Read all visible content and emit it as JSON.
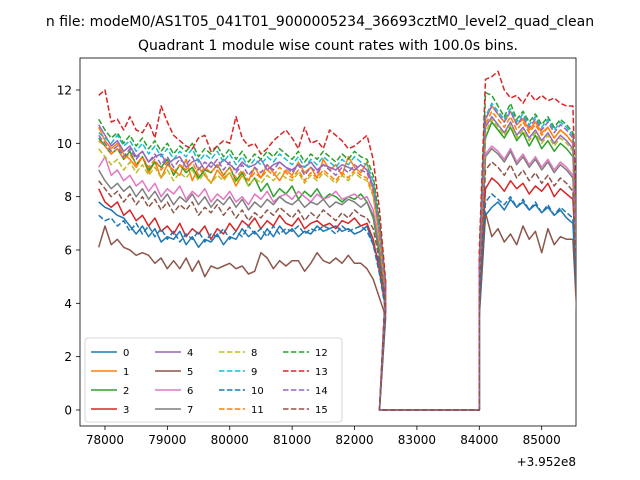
{
  "chart_data": {
    "type": "line",
    "suptitle": "n file: modeM0/AS1T05_041T01_9000005234_36693cztM0_level2_quad_clean",
    "title": "Quadrant 1 module wise count rates with 100.0s bins.",
    "xlabel": "",
    "ylabel": "",
    "x_offset_label": "+3.952e8",
    "xlim": [
      77600,
      85550
    ],
    "ylim": [
      -0.6,
      13.2
    ],
    "xticks": [
      78000,
      79000,
      80000,
      81000,
      82000,
      83000,
      84000,
      85000
    ],
    "xtick_labels": [
      "78000",
      "79000",
      "80000",
      "81000",
      "82000",
      "83000",
      "84000",
      "85000"
    ],
    "yticks": [
      0,
      2,
      4,
      6,
      8,
      10,
      12
    ],
    "ytick_labels": [
      "0",
      "2",
      "4",
      "6",
      "8",
      "10",
      "12"
    ],
    "gaps": [
      [
        82400,
        84000
      ]
    ],
    "legend_loc": "lower-left",
    "series": [
      {
        "name": "0",
        "color": "#1f77b4",
        "dash": "solid",
        "seg1": [
          7.8,
          7.6,
          7.5,
          7.3,
          7.2,
          6.9,
          6.6,
          6.9,
          6.5,
          6.8,
          6.3,
          6.5,
          6.4,
          6.7,
          6.2,
          6.5,
          6.1,
          6.4,
          6.3,
          6.6,
          6.2,
          6.5,
          6.4,
          6.8,
          6.5,
          6.7,
          6.4,
          6.8,
          6.5,
          6.9,
          6.6,
          6.8,
          6.5,
          6.7,
          6.6,
          6.9,
          6.7,
          6.8,
          6.9,
          6.7,
          6.8,
          6.6,
          6.7,
          6.9,
          6.2,
          5.5,
          4.2
        ],
        "seg2": [
          3.5,
          7.3,
          7.6,
          7.8,
          7.5,
          7.9,
          7.6,
          7.8,
          7.5,
          7.7,
          7.4,
          7.6,
          7.3,
          7.5,
          7.2,
          7.0,
          2.6
        ]
      },
      {
        "name": "1",
        "color": "#ff7f0e",
        "dash": "solid",
        "seg1": [
          10.6,
          10.1,
          9.8,
          10.0,
          9.6,
          9.4,
          9.1,
          9.5,
          8.9,
          9.3,
          8.7,
          9.2,
          9.0,
          8.8,
          9.4,
          8.6,
          9.1,
          8.8,
          8.5,
          9.0,
          8.7,
          8.9,
          8.4,
          8.8,
          8.6,
          9.1,
          8.7,
          9.2,
          8.9,
          8.6,
          9.0,
          8.8,
          9.3,
          8.9,
          9.1,
          8.7,
          9.4,
          9.0,
          9.2,
          8.8,
          9.5,
          9.1,
          8.9,
          9.3,
          8.2,
          6.5,
          4.5
        ],
        "seg2": [
          5.2,
          10.9,
          11.4,
          11.1,
          10.8,
          11.2,
          10.7,
          10.9,
          10.5,
          10.8,
          10.4,
          10.6,
          10.2,
          10.5,
          10.3,
          10.0,
          2.8
        ]
      },
      {
        "name": "2",
        "color": "#2ca02c",
        "dash": "solid",
        "seg1": [
          10.2,
          9.9,
          9.6,
          9.8,
          9.4,
          9.7,
          9.2,
          9.5,
          9.0,
          9.3,
          9.1,
          9.4,
          8.8,
          9.2,
          8.9,
          9.1,
          8.7,
          9.0,
          8.9,
          9.2,
          8.8,
          9.1,
          8.6,
          8.9,
          8.4,
          8.7,
          8.2,
          8.5,
          8.0,
          8.3,
          8.1,
          8.4,
          7.9,
          8.2,
          8.0,
          8.3,
          7.9,
          8.1,
          8.0,
          7.8,
          8.0,
          7.9,
          8.1,
          7.8,
          7.2,
          5.8,
          4.0
        ],
        "seg2": [
          4.8,
          10.2,
          10.8,
          10.5,
          10.2,
          10.6,
          10.1,
          10.4,
          9.9,
          10.3,
          9.8,
          10.1,
          9.7,
          10.0,
          9.8,
          9.5,
          3.4
        ]
      },
      {
        "name": "3",
        "color": "#d62728",
        "dash": "solid",
        "seg1": [
          8.3,
          7.8,
          7.6,
          7.8,
          7.3,
          7.5,
          7.1,
          7.3,
          6.9,
          7.2,
          6.7,
          6.9,
          6.6,
          7.0,
          6.5,
          6.8,
          6.6,
          6.9,
          6.4,
          6.8,
          6.6,
          7.0,
          6.7,
          7.1,
          6.9,
          7.2,
          6.8,
          7.1,
          6.9,
          7.3,
          7.0,
          6.9,
          7.2,
          6.8,
          7.0,
          7.1,
          6.9,
          7.0,
          6.8,
          7.1,
          7.0,
          7.2,
          6.9,
          7.0,
          6.4,
          5.2,
          3.8
        ],
        "seg2": [
          4.2,
          8.3,
          8.7,
          8.5,
          8.2,
          8.6,
          8.3,
          8.5,
          8.1,
          8.4,
          8.2,
          8.5,
          8.0,
          8.3,
          8.1,
          7.9,
          3.2
        ]
      },
      {
        "name": "4",
        "color": "#9467bd",
        "dash": "solid",
        "seg1": [
          10.7,
          10.3,
          9.9,
          10.1,
          9.7,
          9.9,
          9.5,
          9.7,
          9.3,
          9.5,
          9.6,
          9.2,
          9.4,
          9.5,
          9.1,
          9.3,
          9.4,
          9.0,
          9.3,
          9.1,
          9.4,
          9.2,
          9.0,
          9.3,
          9.1,
          9.2,
          9.4,
          9.0,
          9.2,
          9.3,
          9.1,
          9.0,
          9.2,
          9.1,
          9.3,
          9.0,
          9.2,
          9.1,
          9.0,
          9.2,
          9.1,
          9.0,
          9.2,
          9.0,
          8.4,
          6.8,
          4.4
        ],
        "seg2": [
          5.0,
          10.6,
          11.0,
          10.7,
          10.4,
          10.8,
          10.3,
          10.6,
          10.2,
          10.5,
          10.1,
          10.4,
          10.0,
          10.3,
          10.1,
          9.8,
          3.1
        ]
      },
      {
        "name": "5",
        "color": "#8c564b",
        "dash": "solid",
        "seg1": [
          6.1,
          6.9,
          6.2,
          6.4,
          6.1,
          6.0,
          5.8,
          5.9,
          5.8,
          5.5,
          5.7,
          5.3,
          5.6,
          5.3,
          5.7,
          5.2,
          5.6,
          5.0,
          5.4,
          5.3,
          5.4,
          5.5,
          5.3,
          5.4,
          5.1,
          5.2,
          5.9,
          5.7,
          5.3,
          5.6,
          5.4,
          5.6,
          5.6,
          5.2,
          5.5,
          5.9,
          5.6,
          5.5,
          5.7,
          5.5,
          5.8,
          5.5,
          5.5,
          5.3,
          4.9,
          4.2,
          3.5
        ],
        "seg2": [
          3.6,
          7.4,
          6.5,
          6.8,
          6.3,
          6.6,
          6.2,
          6.9,
          6.4,
          6.7,
          5.9,
          6.8,
          6.2,
          6.5,
          6.4,
          6.4,
          2.0
        ]
      },
      {
        "name": "6",
        "color": "#e377c2",
        "dash": "solid",
        "seg1": [
          9.1,
          9.5,
          8.8,
          9.0,
          8.6,
          8.8,
          8.4,
          8.6,
          8.2,
          8.5,
          8.0,
          8.3,
          8.1,
          8.4,
          7.9,
          8.2,
          8.0,
          8.3,
          7.8,
          8.1,
          7.9,
          8.2,
          7.8,
          8.0,
          7.7,
          8.1,
          7.9,
          8.2,
          7.8,
          8.0,
          8.1,
          7.9,
          8.2,
          8.0,
          7.8,
          8.1,
          7.9,
          8.0,
          8.2,
          7.9,
          8.0,
          8.1,
          7.9,
          8.0,
          7.5,
          6.2,
          4.3
        ],
        "seg2": [
          4.6,
          9.6,
          9.9,
          9.7,
          9.4,
          9.8,
          9.3,
          9.6,
          9.2,
          9.5,
          9.1,
          9.4,
          9.0,
          9.3,
          9.1,
          8.8,
          3.0
        ]
      },
      {
        "name": "7",
        "color": "#7f7f7f",
        "dash": "solid",
        "seg1": [
          9.0,
          8.6,
          8.3,
          8.5,
          8.2,
          8.4,
          8.0,
          8.3,
          7.9,
          8.2,
          7.8,
          8.1,
          7.7,
          8.0,
          7.8,
          8.1,
          7.7,
          8.0,
          7.6,
          7.9,
          7.7,
          8.0,
          7.6,
          7.9,
          7.5,
          7.8,
          7.6,
          7.9,
          7.7,
          8.0,
          7.8,
          7.7,
          7.9,
          7.6,
          7.8,
          7.7,
          7.9,
          7.6,
          7.8,
          7.7,
          7.9,
          7.8,
          7.6,
          7.8,
          7.3,
          6.0,
          4.2
        ],
        "seg2": [
          4.5,
          9.5,
          9.8,
          9.6,
          9.3,
          9.7,
          9.2,
          9.5,
          9.1,
          9.4,
          9.0,
          9.3,
          8.9,
          9.2,
          9.0,
          8.7,
          2.9
        ]
      },
      {
        "name": "8",
        "color": "#bcbd22",
        "dash": "dashed",
        "seg1": [
          9.8,
          9.5,
          9.2,
          9.4,
          9.0,
          9.3,
          8.9,
          9.2,
          8.8,
          9.1,
          8.7,
          9.0,
          8.6,
          8.9,
          8.7,
          9.0,
          8.6,
          8.9,
          8.5,
          8.8,
          8.6,
          8.9,
          8.5,
          8.8,
          8.4,
          8.7,
          8.5,
          8.8,
          8.6,
          8.9,
          8.7,
          8.6,
          8.9,
          8.5,
          8.8,
          8.6,
          8.9,
          8.7,
          8.5,
          8.8,
          8.6,
          8.9,
          8.7,
          8.6,
          8.0,
          6.4,
          4.4
        ],
        "seg2": [
          4.9,
          10.4,
          10.9,
          10.6,
          10.3,
          10.7,
          10.2,
          10.5,
          10.1,
          10.4,
          10.0,
          10.3,
          9.9,
          10.2,
          10.0,
          9.7,
          3.3
        ]
      },
      {
        "name": "9",
        "color": "#17becf",
        "dash": "dashed",
        "seg1": [
          10.4,
          10.2,
          10.0,
          10.3,
          9.9,
          10.1,
          9.7,
          10.0,
          9.6,
          9.9,
          9.5,
          9.8,
          9.4,
          9.7,
          9.5,
          9.8,
          9.3,
          9.6,
          9.4,
          9.7,
          9.3,
          9.6,
          9.2,
          9.5,
          9.1,
          9.4,
          9.2,
          9.5,
          9.3,
          9.6,
          9.4,
          9.2,
          9.5,
          9.1,
          9.4,
          9.2,
          9.5,
          9.3,
          9.1,
          9.4,
          9.2,
          9.5,
          9.3,
          9.2,
          8.6,
          6.9,
          4.6
        ],
        "seg2": [
          5.3,
          11.0,
          11.5,
          11.2,
          10.9,
          11.3,
          10.8,
          11.1,
          10.7,
          11.0,
          10.6,
          10.9,
          10.5,
          10.8,
          10.6,
          10.3,
          3.5
        ]
      },
      {
        "name": "10",
        "color": "#1f77b4",
        "dash": "dashed",
        "seg1": [
          7.3,
          7.1,
          7.2,
          6.9,
          7.1,
          6.7,
          7.0,
          6.6,
          6.9,
          6.5,
          6.8,
          6.4,
          6.7,
          6.3,
          6.6,
          6.4,
          6.7,
          6.3,
          6.6,
          6.5,
          6.8,
          6.4,
          6.7,
          6.5,
          6.9,
          6.6,
          6.8,
          6.5,
          6.9,
          6.6,
          6.8,
          6.7,
          6.9,
          6.6,
          6.8,
          6.7,
          6.9,
          6.8,
          6.6,
          6.9,
          6.7,
          6.8,
          6.9,
          6.7,
          6.2,
          5.1,
          3.7
        ],
        "seg2": [
          3.9,
          7.8,
          8.1,
          7.9,
          7.7,
          8.0,
          7.6,
          7.9,
          7.5,
          7.8,
          7.4,
          7.7,
          7.3,
          7.6,
          7.4,
          7.2,
          2.7
        ]
      },
      {
        "name": "11",
        "color": "#ff7f0e",
        "dash": "dashed",
        "seg1": [
          10.1,
          9.9,
          9.6,
          9.8,
          9.4,
          9.6,
          9.2,
          9.5,
          9.1,
          9.4,
          9.0,
          9.3,
          8.9,
          9.2,
          9.0,
          9.3,
          8.8,
          9.1,
          8.9,
          9.2,
          8.8,
          9.1,
          8.7,
          9.0,
          8.6,
          8.9,
          8.7,
          9.0,
          8.8,
          9.1,
          8.9,
          8.7,
          9.0,
          8.6,
          8.9,
          8.7,
          9.0,
          8.8,
          8.6,
          8.9,
          8.7,
          9.0,
          8.8,
          8.7,
          8.1,
          6.5,
          4.4
        ],
        "seg2": [
          5.0,
          10.7,
          11.2,
          10.9,
          10.6,
          11.0,
          10.5,
          10.8,
          10.4,
          10.7,
          10.3,
          10.6,
          10.2,
          10.5,
          10.3,
          10.0,
          3.3
        ]
      },
      {
        "name": "12",
        "color": "#2ca02c",
        "dash": "dashed",
        "seg1": [
          10.9,
          10.5,
          10.2,
          10.4,
          10.0,
          10.3,
          9.9,
          10.2,
          9.8,
          10.1,
          9.7,
          10.0,
          9.6,
          9.9,
          9.7,
          10.0,
          9.5,
          9.8,
          9.6,
          9.9,
          9.5,
          9.8,
          9.4,
          9.7,
          9.3,
          9.6,
          9.4,
          9.7,
          9.5,
          9.8,
          9.6,
          9.4,
          9.7,
          9.3,
          9.6,
          9.4,
          9.7,
          9.5,
          9.3,
          9.6,
          9.4,
          9.7,
          9.5,
          9.4,
          8.8,
          7.1,
          4.7
        ],
        "seg2": [
          5.6,
          11.9,
          11.8,
          11.4,
          11.0,
          11.5,
          10.9,
          11.2,
          10.8,
          11.1,
          10.7,
          11.0,
          10.6,
          10.9,
          10.7,
          10.4,
          3.6
        ]
      },
      {
        "name": "13",
        "color": "#d62728",
        "dash": "dashed",
        "seg1": [
          11.8,
          12.0,
          10.8,
          10.9,
          10.5,
          11.0,
          10.5,
          10.4,
          10.8,
          10.2,
          11.4,
          10.8,
          10.3,
          10.1,
          9.9,
          9.8,
          10.2,
          10.3,
          9.7,
          9.9,
          10.1,
          10.0,
          11.0,
          10.2,
          9.9,
          10.0,
          9.6,
          9.8,
          10.1,
          10.3,
          10.5,
          10.2,
          9.8,
          10.6,
          10.0,
          10.1,
          9.8,
          10.5,
          10.3,
          10.1,
          9.8,
          9.9,
          10.1,
          10.3,
          9.4,
          7.5,
          4.8
        ],
        "seg2": [
          6.0,
          12.4,
          12.5,
          12.7,
          12.0,
          11.7,
          11.8,
          11.5,
          11.9,
          11.6,
          11.8,
          11.6,
          11.7,
          11.5,
          11.4,
          11.4,
          3.8
        ]
      },
      {
        "name": "14",
        "color": "#9467bd",
        "dash": "dashed",
        "seg1": [
          10.3,
          10.0,
          9.7,
          9.9,
          9.5,
          9.8,
          9.4,
          9.7,
          9.3,
          9.6,
          9.2,
          9.5,
          9.1,
          9.4,
          9.2,
          9.5,
          9.0,
          9.3,
          9.1,
          9.4,
          9.0,
          9.3,
          8.9,
          9.2,
          8.8,
          9.1,
          8.9,
          9.2,
          9.0,
          9.3,
          9.1,
          8.9,
          9.2,
          8.8,
          9.1,
          8.9,
          9.2,
          9.0,
          8.8,
          9.1,
          8.9,
          9.2,
          9.0,
          8.9,
          8.3,
          6.7,
          4.5
        ],
        "seg2": [
          5.2,
          10.9,
          11.4,
          11.1,
          10.8,
          11.2,
          10.7,
          11.0,
          10.6,
          10.9,
          10.5,
          10.8,
          10.4,
          10.7,
          10.5,
          10.2,
          3.4
        ]
      },
      {
        "name": "15",
        "color": "#8c564b",
        "dash": "dashed",
        "seg1": [
          8.6,
          8.3,
          8.0,
          8.2,
          7.8,
          8.1,
          7.7,
          8.0,
          7.6,
          7.9,
          7.5,
          7.8,
          7.4,
          7.7,
          7.5,
          7.8,
          7.3,
          7.6,
          7.4,
          7.7,
          7.3,
          7.6,
          7.2,
          7.5,
          7.1,
          7.4,
          7.2,
          7.5,
          7.3,
          7.6,
          7.4,
          7.2,
          7.5,
          7.1,
          7.4,
          7.2,
          7.5,
          7.3,
          7.1,
          7.4,
          7.2,
          7.5,
          7.3,
          7.2,
          6.8,
          5.6,
          4.0
        ],
        "seg2": [
          4.3,
          9.0,
          9.3,
          9.1,
          8.8,
          9.2,
          8.7,
          9.0,
          8.6,
          8.9,
          8.5,
          8.8,
          8.4,
          8.7,
          8.5,
          8.2,
          3.0
        ]
      }
    ]
  }
}
